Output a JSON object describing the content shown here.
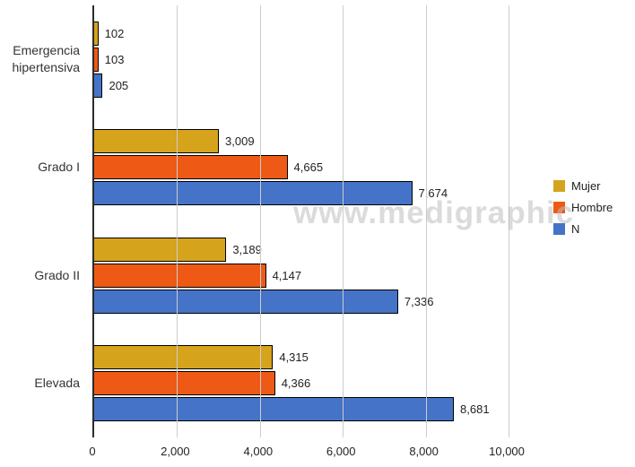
{
  "watermark": "www.medigraphic",
  "chart_data": {
    "type": "bar",
    "orientation": "horizontal",
    "title": "",
    "xlabel": "",
    "ylabel": "",
    "grid": true,
    "legend_position": "right",
    "xlim": [
      0,
      10000
    ],
    "x_ticks": [
      0,
      2000,
      4000,
      6000,
      8000,
      10000
    ],
    "x_tick_labels": [
      "0",
      "2,000",
      "4,000",
      "6,000",
      "8,000",
      "10,000"
    ],
    "categories": [
      "Emergencia hipertensiva",
      "Grado I",
      "Grado II",
      "Elevada"
    ],
    "series": [
      {
        "name": "Mujer",
        "color": "#d6a31d",
        "values": [
          102,
          3009,
          3189,
          4315
        ],
        "labels": [
          "102",
          "3,009",
          "3,189",
          "4,315"
        ]
      },
      {
        "name": "Hombre",
        "color": "#ee5a16",
        "values": [
          103,
          4665,
          4147,
          4366
        ],
        "labels": [
          "103",
          "4,665",
          "4,147",
          "4,366"
        ]
      },
      {
        "name": "N",
        "color": "#4573c8",
        "values": [
          205,
          7674,
          7336,
          8681
        ],
        "labels": [
          "205",
          "7,674",
          "7,336",
          "8,681"
        ]
      }
    ]
  }
}
